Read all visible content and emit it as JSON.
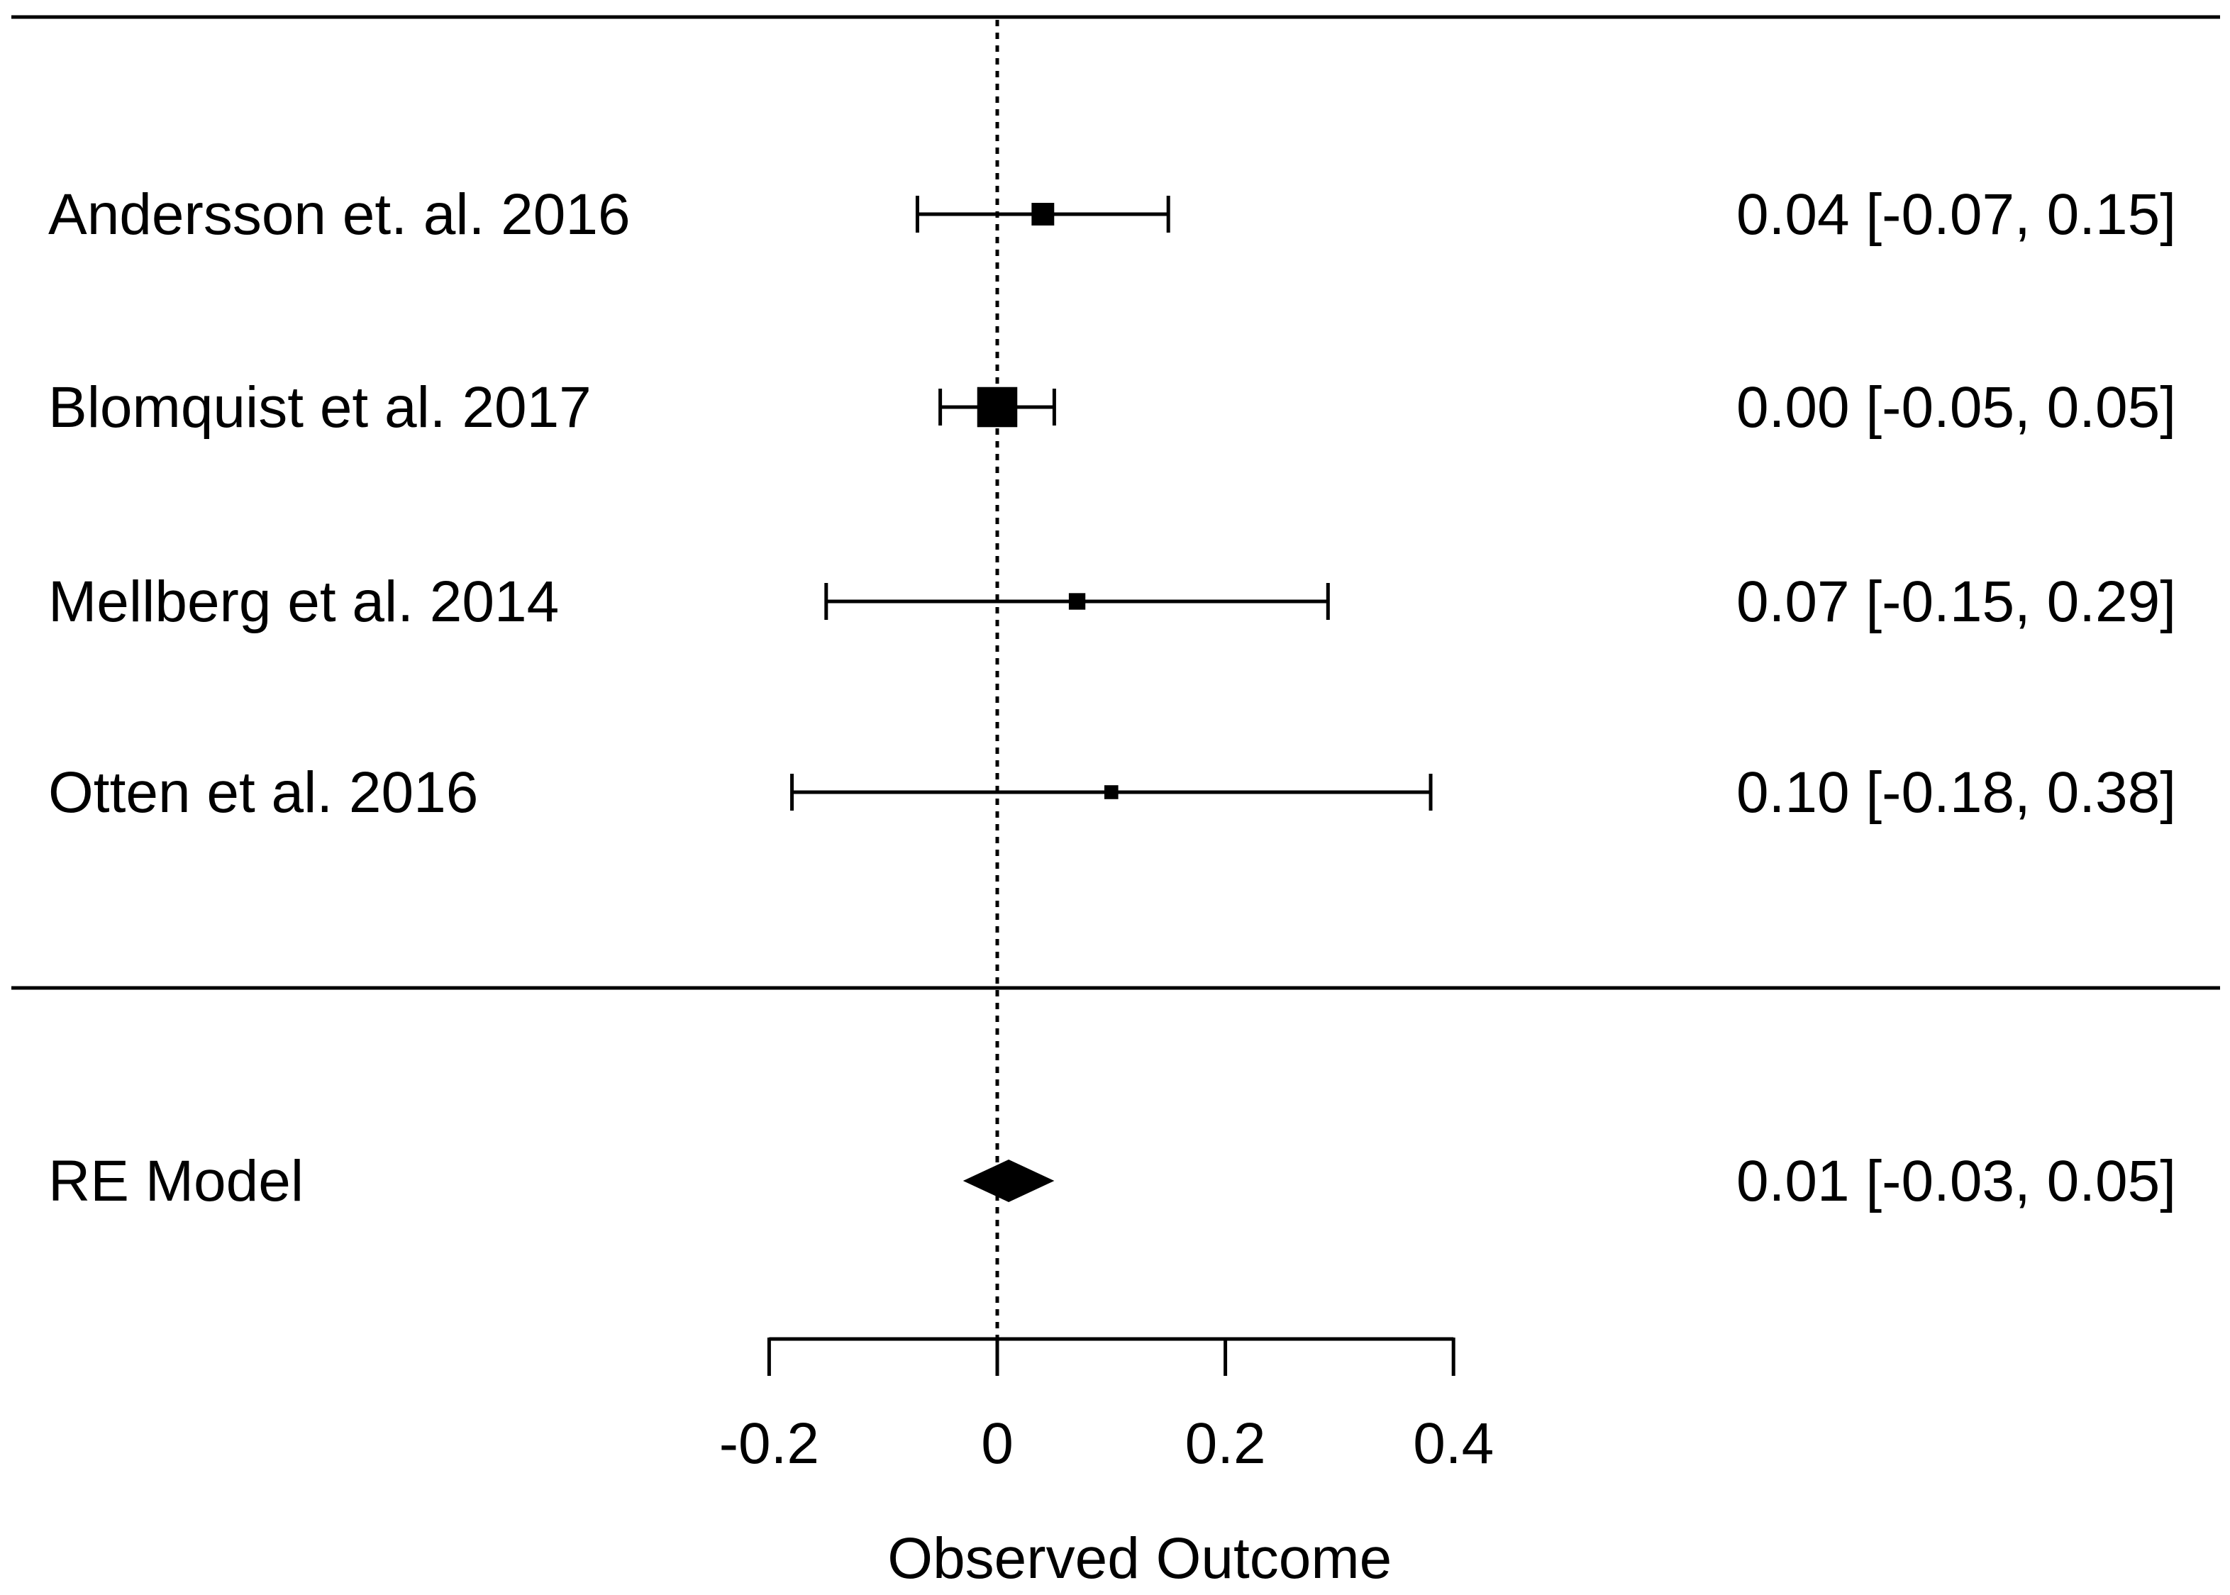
{
  "chart_data": {
    "type": "forest",
    "xlabel": "Observed Outcome",
    "xlim": [
      -0.2,
      0.4
    ],
    "ticks": [
      -0.2,
      0,
      0.2,
      0.4
    ],
    "tick_labels": [
      "-0.2",
      "0",
      "0.2",
      "0.4"
    ],
    "reference_line": 0,
    "studies": [
      {
        "label": "Andersson et. al. 2016",
        "estimate": 0.04,
        "lower": -0.07,
        "upper": 0.15,
        "ci_text": "0.04 [-0.07, 0.15]",
        "weight": 0.17
      },
      {
        "label": "Blomquist et al. 2017",
        "estimate": 0.0,
        "lower": -0.05,
        "upper": 0.05,
        "ci_text": "0.00 [-0.05, 0.05]",
        "weight": 0.7
      },
      {
        "label": "Mellberg et al. 2014",
        "estimate": 0.07,
        "lower": -0.15,
        "upper": 0.29,
        "ci_text": "0.07 [-0.15, 0.29]",
        "weight": 0.07
      },
      {
        "label": "Otten et al. 2016",
        "estimate": 0.1,
        "lower": -0.18,
        "upper": 0.38,
        "ci_text": "0.10 [-0.18, 0.38]",
        "weight": 0.04
      }
    ],
    "summary": {
      "label": "RE Model",
      "estimate": 0.01,
      "lower": -0.03,
      "upper": 0.05,
      "ci_text": "0.01 [-0.03, 0.05]"
    },
    "colors": {
      "foreground": "#000000",
      "background": "#ffffff"
    }
  }
}
